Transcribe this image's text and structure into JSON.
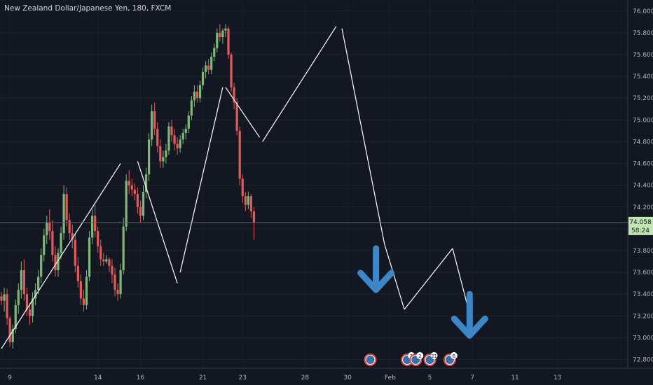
{
  "chart_data": {
    "type": "candlestick",
    "title": "New Zealand Dollar/Japanese Yen, 180, FXCM",
    "ylim": [
      72.72,
      76.05
    ],
    "y_ticks": [
      "76.000",
      "75.800",
      "75.600",
      "75.400",
      "75.200",
      "75.000",
      "74.800",
      "74.600",
      "74.400",
      "74.200",
      "74.000",
      "73.800",
      "73.600",
      "73.400",
      "73.200",
      "73.000",
      "72.800"
    ],
    "x_ticks": [
      "9",
      "14",
      "16",
      "21",
      "23",
      "28",
      "30",
      "Feb",
      "5",
      "7",
      "11",
      "13"
    ],
    "x_tick_index": [
      3,
      34,
      49,
      71,
      85,
      107,
      122,
      137,
      151,
      166,
      181,
      196
    ],
    "last_price": {
      "value": 74.058,
      "label": "74.058",
      "countdown": "58:24"
    },
    "candles": [
      [
        73.38,
        73.42,
        73.3,
        73.34
      ],
      [
        73.34,
        73.46,
        73.24,
        73.4
      ],
      [
        73.4,
        73.45,
        73.12,
        73.18
      ],
      [
        73.18,
        73.2,
        72.92,
        72.96
      ],
      [
        72.96,
        73.12,
        72.9,
        73.08
      ],
      [
        73.08,
        73.35,
        73.04,
        73.3
      ],
      [
        73.3,
        73.5,
        73.22,
        73.44
      ],
      [
        73.44,
        73.7,
        73.36,
        73.62
      ],
      [
        73.62,
        73.72,
        73.34,
        73.4
      ],
      [
        73.4,
        73.46,
        73.2,
        73.26
      ],
      [
        73.26,
        73.32,
        73.12,
        73.2
      ],
      [
        73.2,
        73.42,
        73.14,
        73.36
      ],
      [
        73.36,
        73.5,
        73.3,
        73.44
      ],
      [
        73.44,
        73.62,
        73.4,
        73.56
      ],
      [
        73.56,
        73.82,
        73.5,
        73.76
      ],
      [
        73.76,
        74.0,
        73.7,
        73.94
      ],
      [
        73.94,
        74.12,
        73.86,
        74.06
      ],
      [
        74.06,
        74.18,
        73.9,
        73.98
      ],
      [
        73.98,
        74.08,
        73.7,
        73.76
      ],
      [
        73.76,
        73.84,
        73.56,
        73.62
      ],
      [
        73.62,
        73.82,
        73.56,
        73.78
      ],
      [
        73.78,
        74.02,
        73.72,
        73.96
      ],
      [
        73.96,
        74.4,
        73.9,
        74.32
      ],
      [
        74.32,
        74.38,
        74.02,
        74.08
      ],
      [
        74.08,
        74.14,
        73.9,
        73.96
      ],
      [
        73.96,
        74.04,
        73.82,
        73.9
      ],
      [
        73.9,
        73.96,
        73.6,
        73.66
      ],
      [
        73.66,
        73.74,
        73.46,
        73.52
      ],
      [
        73.52,
        73.58,
        73.3,
        73.36
      ],
      [
        73.36,
        73.44,
        73.24,
        73.3
      ],
      [
        73.3,
        73.62,
        73.26,
        73.56
      ],
      [
        73.56,
        73.98,
        73.52,
        73.92
      ],
      [
        73.92,
        74.18,
        73.86,
        74.12
      ],
      [
        74.12,
        74.22,
        73.92,
        73.98
      ],
      [
        73.98,
        74.02,
        73.78,
        73.84
      ],
      [
        73.84,
        73.9,
        73.66,
        73.72
      ],
      [
        73.72,
        73.78,
        73.66,
        73.7
      ],
      [
        73.7,
        73.76,
        73.68,
        73.72
      ],
      [
        73.72,
        73.74,
        73.6,
        73.66
      ],
      [
        73.66,
        73.72,
        73.5,
        73.58
      ],
      [
        73.58,
        73.64,
        73.38,
        73.44
      ],
      [
        73.44,
        73.5,
        73.34,
        73.4
      ],
      [
        73.4,
        73.68,
        73.36,
        73.62
      ],
      [
        73.62,
        74.1,
        73.58,
        74.02
      ],
      [
        74.02,
        74.5,
        73.98,
        74.44
      ],
      [
        74.44,
        74.54,
        74.32,
        74.4
      ],
      [
        74.4,
        74.46,
        74.3,
        74.36
      ],
      [
        74.36,
        74.42,
        74.26,
        74.32
      ],
      [
        74.32,
        74.38,
        74.14,
        74.2
      ],
      [
        74.2,
        74.26,
        74.06,
        74.12
      ],
      [
        74.12,
        74.4,
        74.08,
        74.34
      ],
      [
        74.34,
        74.56,
        74.28,
        74.5
      ],
      [
        74.5,
        74.88,
        74.44,
        74.82
      ],
      [
        74.82,
        75.14,
        74.76,
        75.08
      ],
      [
        75.08,
        75.16,
        74.86,
        74.92
      ],
      [
        74.92,
        74.98,
        74.7,
        74.76
      ],
      [
        74.76,
        74.82,
        74.56,
        74.62
      ],
      [
        74.62,
        74.72,
        74.56,
        74.66
      ],
      [
        74.66,
        74.78,
        74.6,
        74.72
      ],
      [
        74.72,
        74.98,
        74.68,
        74.94
      ],
      [
        74.94,
        75.0,
        74.8,
        74.86
      ],
      [
        74.86,
        74.92,
        74.72,
        74.78
      ],
      [
        74.78,
        74.84,
        74.68,
        74.74
      ],
      [
        74.74,
        74.86,
        74.7,
        74.82
      ],
      [
        74.82,
        74.92,
        74.78,
        74.88
      ],
      [
        74.88,
        74.96,
        74.82,
        74.92
      ],
      [
        74.92,
        75.08,
        74.88,
        75.04
      ],
      [
        75.04,
        75.22,
        75.0,
        75.18
      ],
      [
        75.18,
        75.32,
        75.12,
        75.26
      ],
      [
        75.26,
        75.32,
        75.16,
        75.2
      ],
      [
        75.2,
        75.36,
        75.16,
        75.32
      ],
      [
        75.32,
        75.48,
        75.28,
        75.44
      ],
      [
        75.44,
        75.54,
        75.38,
        75.5
      ],
      [
        75.5,
        75.56,
        75.42,
        75.46
      ],
      [
        75.46,
        75.62,
        75.42,
        75.58
      ],
      [
        75.58,
        75.7,
        75.54,
        75.66
      ],
      [
        75.66,
        75.84,
        75.62,
        75.8
      ],
      [
        75.8,
        75.88,
        75.72,
        75.76
      ],
      [
        75.76,
        75.84,
        75.7,
        75.82
      ],
      [
        75.82,
        75.88,
        75.76,
        75.84
      ],
      [
        75.84,
        75.86,
        75.56,
        75.6
      ],
      [
        75.6,
        75.62,
        75.26,
        75.3
      ],
      [
        75.3,
        75.34,
        75.1,
        75.16
      ],
      [
        75.16,
        75.2,
        74.86,
        74.9
      ],
      [
        74.9,
        74.94,
        74.4,
        74.46
      ],
      [
        74.46,
        74.5,
        74.24,
        74.3
      ],
      [
        74.3,
        74.34,
        74.16,
        74.22
      ],
      [
        74.22,
        74.34,
        74.18,
        74.3
      ],
      [
        74.3,
        74.32,
        74.1,
        74.16
      ],
      [
        74.16,
        74.2,
        73.9,
        74.06
      ]
    ],
    "trendlines": [
      [
        [
          0,
          72.9
        ],
        [
          42,
          74.6
        ]
      ],
      [
        [
          48,
          74.62
        ],
        [
          62,
          73.5
        ]
      ],
      [
        [
          63,
          73.6
        ],
        [
          78,
          75.3
        ]
      ],
      [
        [
          79,
          75.3
        ],
        [
          91,
          74.84
        ]
      ],
      [
        [
          92,
          74.8
        ],
        [
          118,
          75.86
        ]
      ],
      [
        [
          120,
          75.84
        ],
        [
          135,
          73.86
        ]
      ],
      [
        [
          135,
          73.86
        ],
        [
          142,
          73.26
        ]
      ],
      [
        [
          142,
          73.26
        ],
        [
          159,
          73.82
        ]
      ],
      [
        [
          159,
          73.82
        ],
        [
          166,
          73.12
        ]
      ]
    ],
    "arrows": [
      {
        "at": 132,
        "from": 73.82,
        "to": 73.44
      },
      {
        "at": 165,
        "from": 73.4,
        "to": 73.02
      }
    ],
    "event_markers": [
      {
        "at": 130,
        "count": ""
      },
      {
        "at": 143,
        "count": "2"
      },
      {
        "at": 146,
        "count": "2"
      },
      {
        "at": 151,
        "count": "21"
      },
      {
        "at": 158,
        "count": "6"
      }
    ],
    "colors": {
      "bg": "#131722",
      "up": "#7fb97a",
      "down": "#e45a5a",
      "line": "#ffffff",
      "arrow": "#3d87c8",
      "price_tag": "#c1e5b3"
    }
  }
}
